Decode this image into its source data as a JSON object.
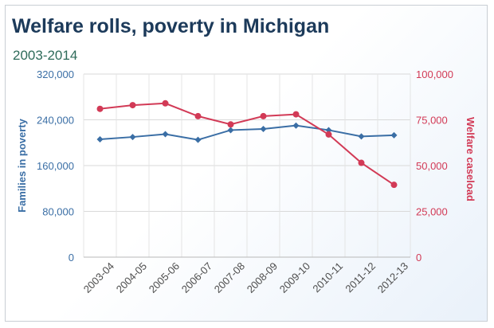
{
  "chart_data": {
    "type": "line",
    "title": "Welfare rolls, poverty in Michigan",
    "subtitle": "2003-2014",
    "categories": [
      "2003-04",
      "2004-05",
      "2005-06",
      "2006-07",
      "2007-08",
      "2008-09",
      "2009-10",
      "2010-11",
      "2011-12",
      "2012-13"
    ],
    "y_left": {
      "label": "Families in poverty",
      "lim": [
        0,
        320000
      ],
      "ticks": [
        "0",
        "80,000",
        "160,000",
        "240,000",
        "320,000"
      ],
      "tick_values": [
        0,
        80000,
        160000,
        240000,
        320000
      ],
      "color": "#3a6ea5"
    },
    "y_right": {
      "label": "Welfare caseload",
      "lim": [
        0,
        100000
      ],
      "ticks": [
        "0",
        "25,000",
        "50,000",
        "75,000",
        "100,000"
      ],
      "tick_values": [
        0,
        25000,
        50000,
        75000,
        100000
      ],
      "color": "#d23a56"
    },
    "series": [
      {
        "name": "Families in poverty",
        "axis": "left",
        "color": "#3a6ea5",
        "marker": "diamond",
        "values": [
          206000,
          210000,
          215000,
          205000,
          222000,
          224000,
          230000,
          222000,
          211000,
          213000
        ]
      },
      {
        "name": "Welfare caseload",
        "axis": "right",
        "color": "#d23a56",
        "marker": "circle",
        "values": [
          81000,
          83000,
          84000,
          77000,
          72500,
          77000,
          78000,
          67000,
          51500,
          39500
        ]
      }
    ],
    "grid": true,
    "legend": "none"
  }
}
